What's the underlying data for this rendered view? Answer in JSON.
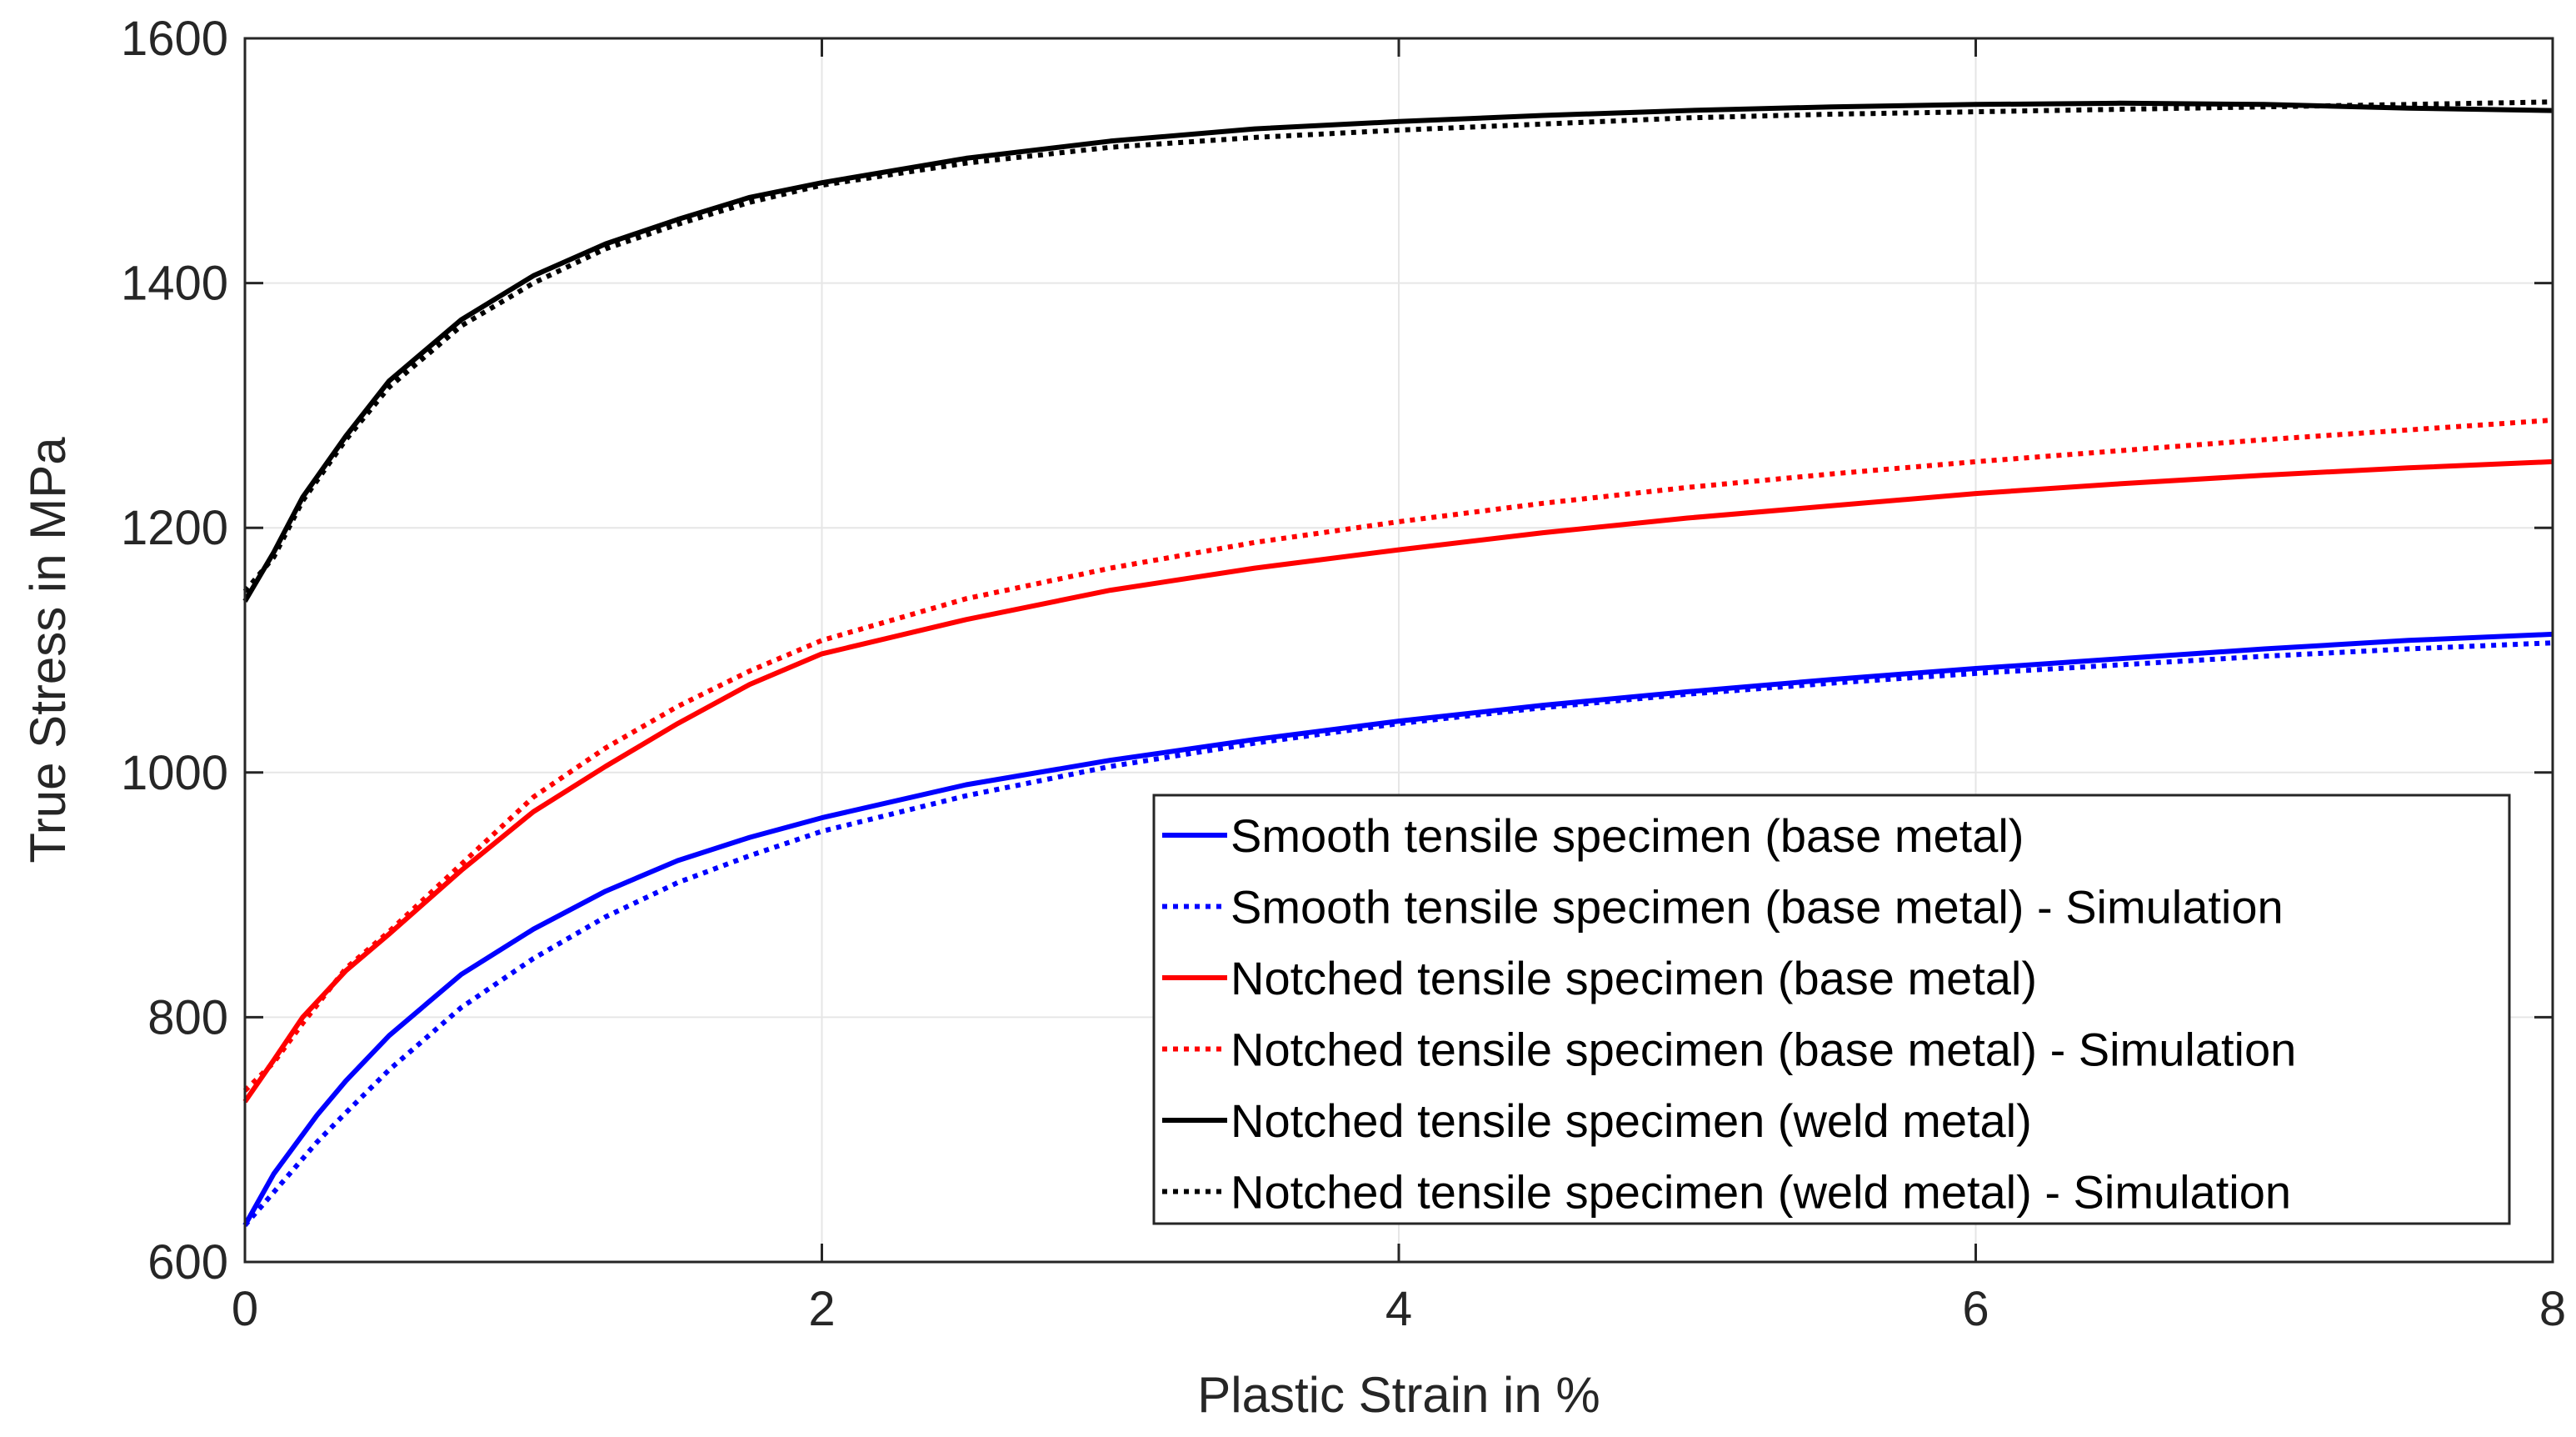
{
  "chart_data": {
    "type": "line",
    "title": "",
    "xlabel": "Plastic Strain in %",
    "ylabel": "True Stress in MPa",
    "xlim": [
      0,
      8
    ],
    "ylim": [
      600,
      1600
    ],
    "xticks": [
      0,
      2,
      4,
      6,
      8
    ],
    "yticks": [
      600,
      800,
      1000,
      1200,
      1400,
      1600
    ],
    "xtick_labels": [
      "0",
      "2",
      "4",
      "6",
      "8"
    ],
    "ytick_labels": [
      "600",
      "800",
      "1000",
      "1200",
      "1400",
      "1600"
    ],
    "grid": true,
    "legend_position": "bottom-right",
    "series": [
      {
        "name": "Smooth tensile specimen (base metal)",
        "color": "#0000ff",
        "style": "solid",
        "x": [
          0,
          0.1,
          0.25,
          0.35,
          0.5,
          0.75,
          1.0,
          1.25,
          1.5,
          1.75,
          2.0,
          2.5,
          3.0,
          3.5,
          4.0,
          4.5,
          5.0,
          5.5,
          6.0,
          6.5,
          7.0,
          7.5,
          8.0
        ],
        "y": [
          630,
          672,
          720,
          748,
          785,
          835,
          872,
          903,
          928,
          947,
          963,
          990,
          1010,
          1027,
          1042,
          1055,
          1066,
          1076,
          1085,
          1093,
          1101,
          1108,
          1113
        ]
      },
      {
        "name": "Smooth tensile specimen (base metal) - Simulation",
        "color": "#0000ff",
        "style": "dotted",
        "x": [
          0,
          0.1,
          0.25,
          0.35,
          0.5,
          0.75,
          1.0,
          1.25,
          1.5,
          1.75,
          2.0,
          2.5,
          3.0,
          3.5,
          4.0,
          4.5,
          5.0,
          5.5,
          6.0,
          6.5,
          7.0,
          7.5,
          8.0
        ],
        "y": [
          630,
          657,
          698,
          722,
          757,
          808,
          848,
          882,
          910,
          932,
          952,
          981,
          1005,
          1024,
          1040,
          1053,
          1064,
          1073,
          1081,
          1088,
          1095,
          1101,
          1106
        ]
      },
      {
        "name": "Notched tensile specimen (base metal)",
        "color": "#ff0000",
        "style": "solid",
        "x": [
          0,
          0.1,
          0.2,
          0.35,
          0.5,
          0.75,
          1.0,
          1.25,
          1.5,
          1.75,
          2.0,
          2.5,
          3.0,
          3.5,
          4.0,
          4.5,
          5.0,
          5.5,
          6.0,
          6.5,
          7.0,
          7.5,
          8.0
        ],
        "y": [
          731,
          765,
          800,
          838,
          868,
          920,
          968,
          1005,
          1040,
          1072,
          1097,
          1125,
          1149,
          1167,
          1182,
          1196,
          1208,
          1218,
          1228,
          1236,
          1243,
          1249,
          1254
        ]
      },
      {
        "name": "Notched tensile specimen (base metal) - Simulation",
        "color": "#ff0000",
        "style": "dotted",
        "x": [
          0,
          0.1,
          0.2,
          0.35,
          0.5,
          0.75,
          1.0,
          1.25,
          1.5,
          1.75,
          2.0,
          2.5,
          3.0,
          3.5,
          4.0,
          4.5,
          5.0,
          5.5,
          6.0,
          6.5,
          7.0,
          7.5,
          8.0
        ],
        "y": [
          740,
          763,
          795,
          840,
          870,
          925,
          980,
          1020,
          1054,
          1083,
          1108,
          1142,
          1167,
          1188,
          1205,
          1220,
          1233,
          1244,
          1254,
          1263,
          1272,
          1280,
          1288
        ]
      },
      {
        "name": "Notched tensile specimen (weld metal)",
        "color": "#000000",
        "style": "solid",
        "x": [
          0,
          0.1,
          0.2,
          0.35,
          0.5,
          0.75,
          1.0,
          1.25,
          1.5,
          1.75,
          2.0,
          2.5,
          3.0,
          3.5,
          4.0,
          4.5,
          5.0,
          5.5,
          6.0,
          6.5,
          7.0,
          7.5,
          8.0
        ],
        "y": [
          1140,
          1180,
          1225,
          1275,
          1320,
          1370,
          1406,
          1432,
          1452,
          1470,
          1482,
          1502,
          1516,
          1526,
          1532,
          1537,
          1541,
          1544,
          1546,
          1547,
          1546,
          1543,
          1541
        ]
      },
      {
        "name": "Notched tensile specimen (weld metal) - Simulation",
        "color": "#000000",
        "style": "dotted",
        "x": [
          0,
          0.1,
          0.2,
          0.35,
          0.5,
          0.75,
          1.0,
          1.25,
          1.5,
          1.75,
          2.0,
          2.5,
          3.0,
          3.5,
          4.0,
          4.5,
          5.0,
          5.5,
          6.0,
          6.5,
          7.0,
          7.5,
          8.0
        ],
        "y": [
          1148,
          1176,
          1222,
          1272,
          1315,
          1365,
          1400,
          1428,
          1448,
          1466,
          1480,
          1498,
          1511,
          1519,
          1525,
          1530,
          1535,
          1538,
          1540,
          1542,
          1544,
          1546,
          1548
        ]
      }
    ]
  }
}
